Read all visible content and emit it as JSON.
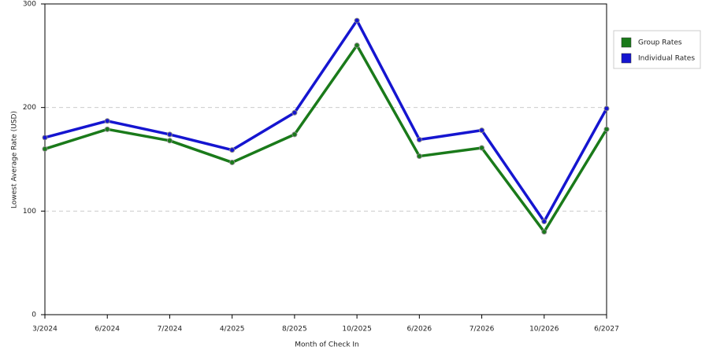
{
  "chart_data": {
    "type": "line",
    "x_label": "Month of Check In",
    "y_label": "Lowest Average Rate (USD)",
    "categories": [
      "3/2024",
      "6/2024",
      "7/2024",
      "4/2025",
      "8/2025",
      "10/2025",
      "6/2026",
      "7/2026",
      "10/2026",
      "6/2027"
    ],
    "series": [
      {
        "name": "Group Rates",
        "color": "#1a7a1a",
        "values": [
          160,
          179,
          168,
          147,
          174,
          260,
          153,
          161,
          80,
          179
        ]
      },
      {
        "name": "Individual Rates",
        "color": "#1515d0",
        "values": [
          171,
          187,
          174,
          159,
          195,
          284,
          169,
          178,
          90,
          199
        ]
      }
    ],
    "ylim": [
      0,
      300
    ],
    "yticks": [
      0,
      100,
      200,
      300
    ],
    "grid": true
  }
}
